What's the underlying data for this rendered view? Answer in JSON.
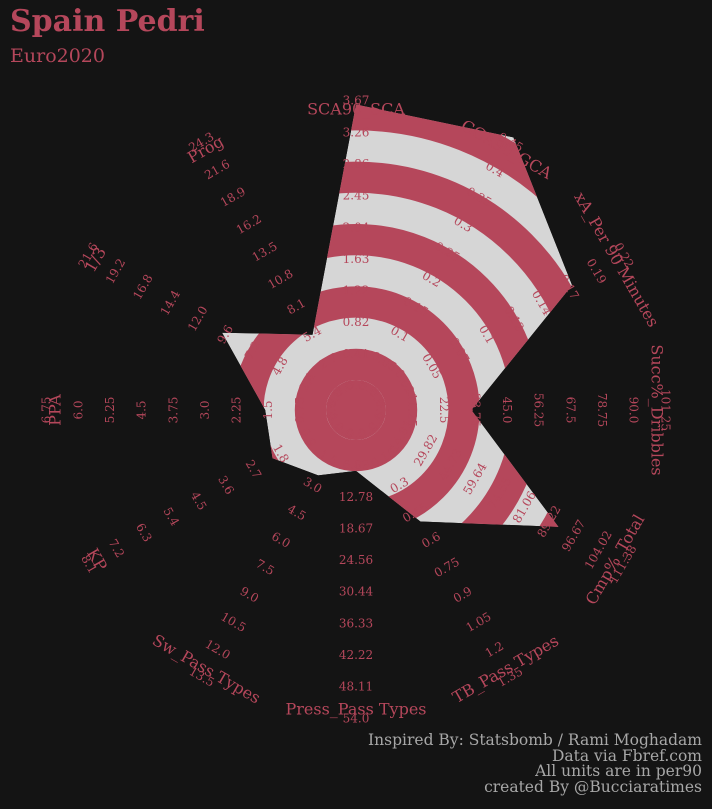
{
  "header": {
    "title": "Spain Pedri",
    "subtitle": "Euro2020"
  },
  "footer": {
    "line1": "Inspired By: Statsbomb / Rami Moghadam",
    "line2": "Data via Fbref.com",
    "line3": "All units are in per90",
    "line4": "created By @Bucciaratimes"
  },
  "colors": {
    "background": "#141414",
    "accent": "#b5475b",
    "polygon_fill": "#d6d6d6",
    "footer_text": "#a7a7a7"
  },
  "chart_data": {
    "type": "radar",
    "title": "Spain Pedri",
    "subtitle": "Euro2020",
    "rings": 9,
    "axes": [
      {
        "name": "SCA90_SCA",
        "ticks": [
          "0.0",
          "0.41",
          "0.82",
          "1.22",
          "1.63",
          "2.04",
          "2.45",
          "2.86",
          "3.26",
          "3.67"
        ],
        "min": 0.0,
        "max": 3.67,
        "value": 3.55
      },
      {
        "name": "GCA90_GCA",
        "ticks": [
          "0.0",
          "0.05",
          "0.1",
          "0.15",
          "0.2",
          "0.25",
          "0.3",
          "0.35",
          "0.4",
          "0.45"
        ],
        "min": 0.0,
        "max": 0.5,
        "value": 0.5
      },
      {
        "name": "xA_Per 90 Minutes",
        "ticks": [
          "0.0",
          "0.02",
          "0.05",
          "0.07",
          "0.1",
          "0.12",
          "0.14",
          "0.17",
          "0.19",
          "0.22"
        ],
        "min": 0.0,
        "max": 0.24,
        "value": 0.185
      },
      {
        "name": "Succ%_Dribbles",
        "ticks": [
          "0.0",
          "11.25",
          "22.5",
          "33.75",
          "45.0",
          "56.25",
          "67.5",
          "78.75",
          "90.0",
          "101.25"
        ],
        "min": 0.0,
        "max": 112.5,
        "value": 33.75
      },
      {
        "name": "Cmp%_Total",
        "ticks": [
          "0.0",
          "14.91",
          "29.82",
          "44.73",
          "59.64",
          "74.55",
          "81.06",
          "89.22",
          "96.67",
          "104.02",
          "111.38"
        ],
        "min": 0.0,
        "max": 116.0,
        "value": 83.0
      },
      {
        "name": "TB_Pass Types",
        "ticks": [
          "0.0",
          "0.15",
          "0.3",
          "0.45",
          "0.6",
          "0.75",
          "0.9",
          "1.05",
          "1.2",
          "1.35"
        ],
        "min": 0.0,
        "max": 1.5,
        "value": 0.52
      },
      {
        "name": "Press_Pass Types",
        "ticks": [
          "0.0",
          "6.89",
          "12.78",
          "18.67",
          "24.56",
          "30.44",
          "36.33",
          "42.22",
          "48.11",
          "54.0"
        ],
        "min": 0.0,
        "max": 60.0,
        "value": 6.5
      },
      {
        "name": "Sw_Pass Types",
        "ticks": [
          "0.0",
          "1.5",
          "3.0",
          "4.5",
          "6.0",
          "7.5",
          "9.0",
          "10.5",
          "12.0",
          "13.5"
        ],
        "min": 0.0,
        "max": 15.0,
        "value": 2.4
      },
      {
        "name": "KP",
        "ticks": [
          "0.0",
          "0.9",
          "1.8",
          "2.7",
          "3.6",
          "4.5",
          "5.4",
          "6.3",
          "7.2",
          "8.1"
        ],
        "min": 0.0,
        "max": 9.0,
        "value": 2.1
      },
      {
        "name": "PPA",
        "ticks": [
          "0.0",
          "0.75",
          "1.5",
          "2.25",
          "3.0",
          "3.75",
          "4.5",
          "5.25",
          "6.0",
          "6.75"
        ],
        "min": 0.0,
        "max": 7.5,
        "value": 1.6
      },
      {
        "name": "1/3",
        "ticks": [
          "0.0",
          "2.4",
          "4.8",
          "7.2",
          "9.6",
          "12.0",
          "14.4",
          "16.8",
          "19.2",
          "21.6"
        ],
        "min": 0.0,
        "max": 24.0,
        "value": 10.5
      },
      {
        "name": "Prog",
        "ticks": [
          "0.0",
          "2.7",
          "5.4",
          "8.1",
          "10.8",
          "13.5",
          "16.2",
          "18.9",
          "21.6",
          "24.3"
        ],
        "min": 0.0,
        "max": 27.0,
        "value": 5.4
      }
    ]
  }
}
